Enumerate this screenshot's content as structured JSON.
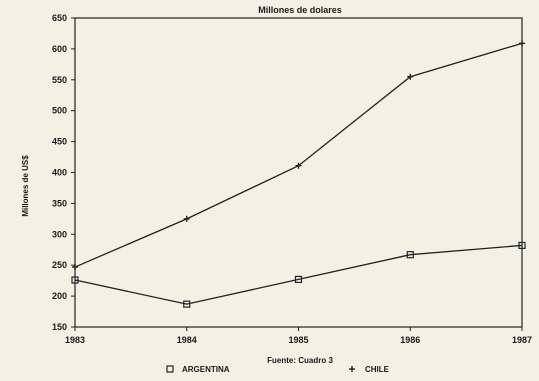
{
  "chart_data": {
    "type": "line",
    "title": "Millones de dolares",
    "xlabel": "",
    "ylabel": "Millones de US$",
    "source": "Fuente: Cuadro 3",
    "categories": [
      "1983",
      "1984",
      "1985",
      "1986",
      "1987"
    ],
    "ylim": [
      150,
      650
    ],
    "yticks": [
      150,
      200,
      250,
      300,
      350,
      400,
      450,
      500,
      550,
      600,
      650
    ],
    "grid": false,
    "legend_position": "bottom",
    "series": [
      {
        "name": "ARGENTINA",
        "marker": "square",
        "values": [
          226,
          187,
          227,
          267,
          282
        ]
      },
      {
        "name": "CHILE",
        "marker": "plus",
        "values": [
          247,
          325,
          411,
          555,
          609
        ]
      }
    ]
  }
}
